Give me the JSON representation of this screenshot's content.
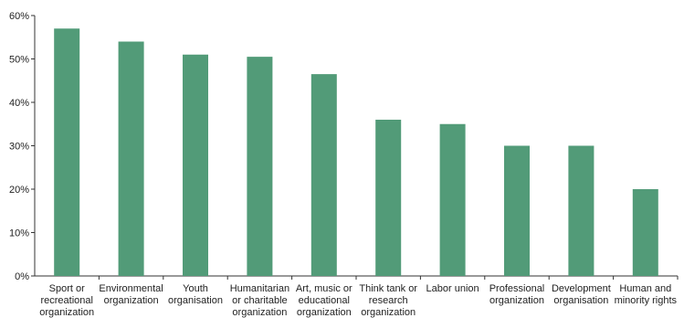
{
  "chart_data": {
    "type": "bar",
    "categories": [
      [
        "Sport or",
        "recreational",
        "organization"
      ],
      [
        "Environmental",
        "organization"
      ],
      [
        "Youth",
        "organisation"
      ],
      [
        "Humanitarian",
        "or charitable",
        "organization"
      ],
      [
        "Art, music or",
        "educational",
        "organization"
      ],
      [
        "Think tank or",
        "research",
        "organization"
      ],
      [
        "Labor union"
      ],
      [
        "Professional",
        "organization"
      ],
      [
        "Development",
        "organisation"
      ],
      [
        "Human and",
        "minority rights"
      ]
    ],
    "values": [
      57,
      54,
      51,
      50.5,
      46.5,
      36,
      35,
      30,
      30,
      20
    ],
    "yticks": [
      "0%",
      "10%",
      "20%",
      "30%",
      "40%",
      "50%",
      "60%"
    ],
    "ylim": [
      0,
      60
    ],
    "bar_color": "#529b78",
    "axis_color": "#333333",
    "title": "",
    "xlabel": "",
    "ylabel": ""
  }
}
